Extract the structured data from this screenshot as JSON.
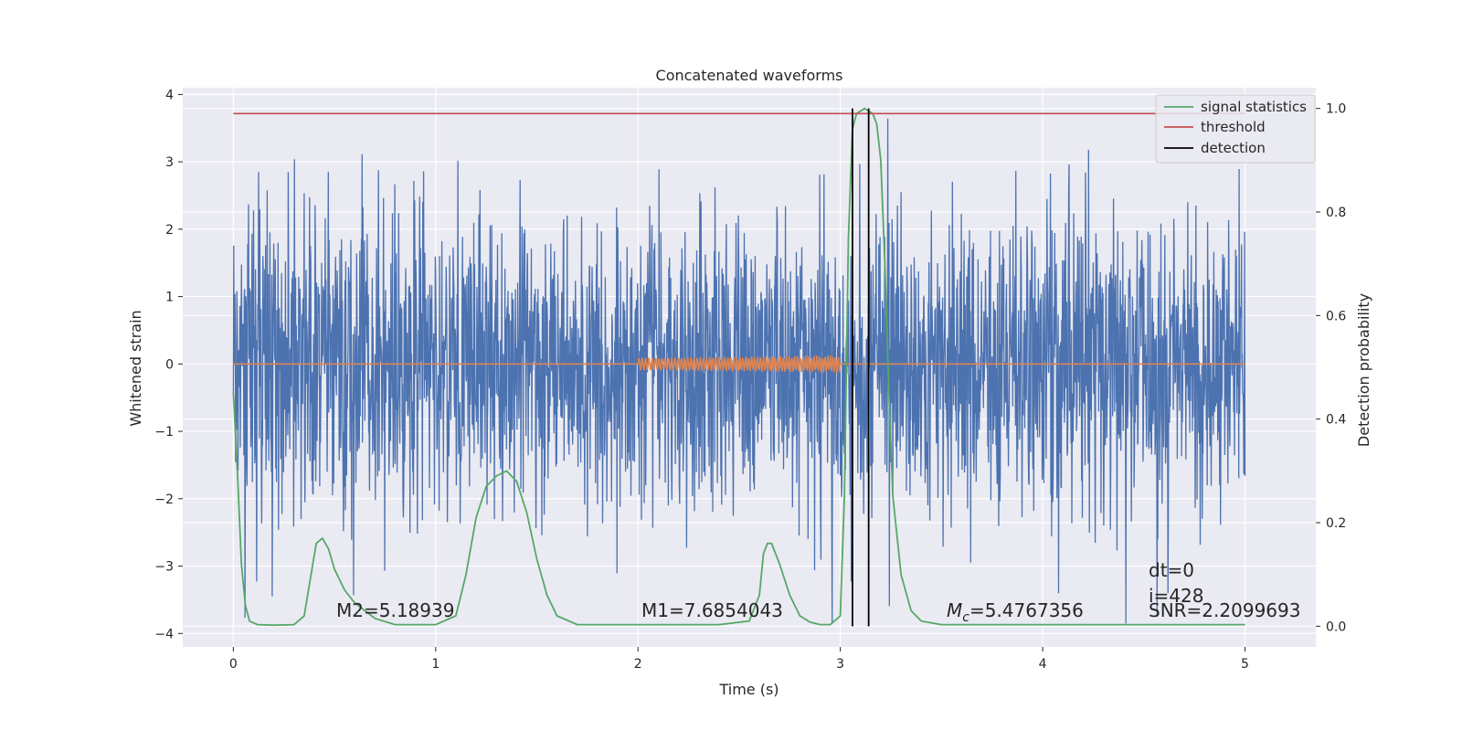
{
  "chart_data": {
    "type": "line",
    "title": "Concatenated waveforms",
    "xlabel": "Time (s)",
    "ylabel_left": "Whitened strain",
    "ylabel_right": "Detection probability",
    "xlim": [
      -0.25,
      5.35
    ],
    "ylim_left": [
      -4.2,
      4.1
    ],
    "ylim_right": [
      -0.04,
      1.04
    ],
    "x_ticks": [
      0,
      1,
      2,
      3,
      4,
      5
    ],
    "y_left_ticks": [
      -4,
      -3,
      -2,
      -1,
      0,
      1,
      2,
      3,
      4
    ],
    "y_right_ticks": [
      0.0,
      0.2,
      0.4,
      0.6,
      0.8,
      1.0
    ],
    "grid": true,
    "legend_position": "top-right",
    "colors": {
      "strain": "#4c72b0",
      "injection": "#dd8452",
      "signal_statistics": "#55a868",
      "threshold": "#c44e52",
      "detection": "#000000",
      "background": "#eaeaf2",
      "grid": "#ffffff"
    },
    "strain": {
      "x_range": [
        0,
        5
      ],
      "sample_count": 2600,
      "seed": 7,
      "band_upper_approx": 0.7,
      "band_lower_approx": -0.8,
      "spike_max": 3.75,
      "spike_min": -3.85
    },
    "injection": {
      "x_range": [
        2.0,
        3.0
      ],
      "amplitude_max": 0.13,
      "baseline": 0.0
    },
    "series": [
      {
        "name": "signal statistics",
        "axis": "right",
        "x": [
          0,
          0.02,
          0.04,
          0.06,
          0.08,
          0.12,
          0.2,
          0.3,
          0.35,
          0.38,
          0.41,
          0.44,
          0.47,
          0.5,
          0.55,
          0.6,
          0.7,
          0.8,
          1.0,
          1.1,
          1.15,
          1.2,
          1.25,
          1.3,
          1.35,
          1.4,
          1.45,
          1.5,
          1.55,
          1.6,
          1.7,
          2.0,
          2.4,
          2.55,
          2.6,
          2.62,
          2.64,
          2.66,
          2.7,
          2.75,
          2.8,
          2.85,
          2.9,
          2.95,
          3.0,
          3.02,
          3.04,
          3.06,
          3.08,
          3.12,
          3.16,
          3.18,
          3.2,
          3.22,
          3.24,
          3.26,
          3.3,
          3.35,
          3.4,
          3.5,
          3.7,
          4.0,
          4.5,
          5.0
        ],
        "y": [
          0.45,
          0.3,
          0.12,
          0.04,
          0.01,
          0.003,
          0.002,
          0.003,
          0.02,
          0.09,
          0.16,
          0.17,
          0.15,
          0.11,
          0.07,
          0.045,
          0.015,
          0.003,
          0.003,
          0.02,
          0.1,
          0.21,
          0.27,
          0.29,
          0.3,
          0.28,
          0.22,
          0.13,
          0.06,
          0.02,
          0.003,
          0.003,
          0.003,
          0.01,
          0.06,
          0.14,
          0.16,
          0.16,
          0.12,
          0.06,
          0.02,
          0.008,
          0.003,
          0.003,
          0.02,
          0.25,
          0.75,
          0.96,
          0.99,
          1.0,
          0.99,
          0.97,
          0.9,
          0.7,
          0.45,
          0.25,
          0.1,
          0.03,
          0.01,
          0.003,
          0.003,
          0.003,
          0.003,
          0.003
        ]
      },
      {
        "name": "threshold",
        "axis": "right",
        "x": [
          0,
          5
        ],
        "y": [
          0.99,
          0.99
        ]
      },
      {
        "name": "detection",
        "axis": "right",
        "x": [
          3.06,
          3.14
        ],
        "y_range": [
          0.0,
          1.0
        ]
      }
    ],
    "annotations": [
      {
        "id": "m2",
        "text": "M2=5.18939"
      },
      {
        "id": "m1",
        "text": "M1=7.6854043"
      },
      {
        "id": "mc_symbol",
        "text": "M"
      },
      {
        "id": "mc_sub",
        "text": "c"
      },
      {
        "id": "mc_value",
        "text": "=5.4767356"
      },
      {
        "id": "dt",
        "text": "dt=0"
      },
      {
        "id": "i",
        "text": "i=428"
      },
      {
        "id": "snr",
        "text": "SNR=2.2099693"
      }
    ]
  }
}
